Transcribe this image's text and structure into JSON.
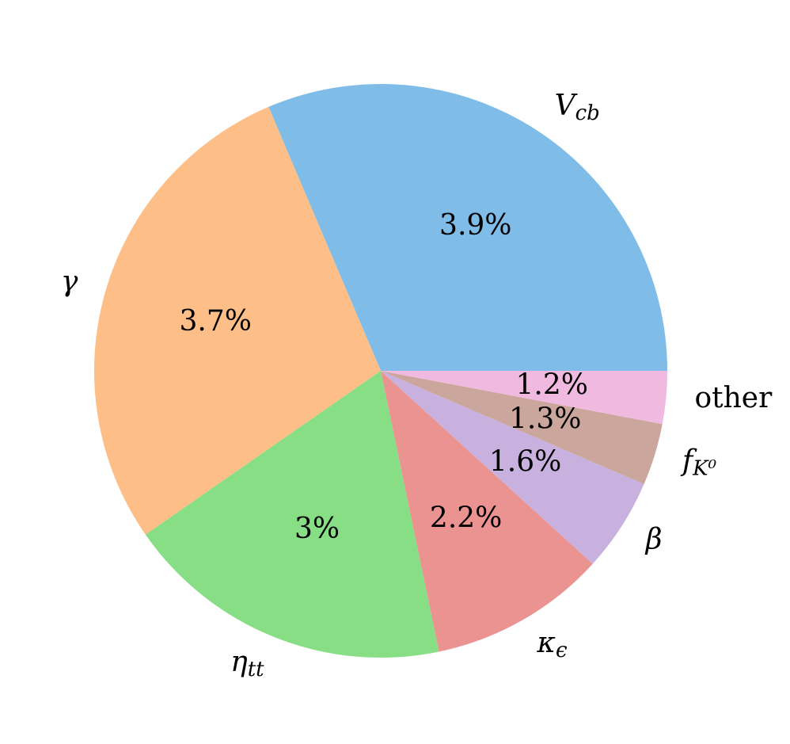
{
  "chart_data": {
    "type": "pie",
    "categories": [
      "V_cb",
      "γ",
      "η_tt",
      "κ_ϵ",
      "β",
      "f_K⁰",
      "other"
    ],
    "values": [
      3.9,
      3.7,
      3,
      2.2,
      1.6,
      1.3,
      1.2
    ],
    "value_labels": [
      "3.9%",
      "3.7%",
      "3%",
      "2.2%",
      "1.6%",
      "1.3%",
      "1.2%"
    ],
    "colors": [
      "#7fbde8",
      "#fdbf87",
      "#88de84",
      "#ea9391",
      "#c8b1df",
      "#cba69d",
      "#f0b9e0"
    ],
    "slice_size": "square"
  }
}
